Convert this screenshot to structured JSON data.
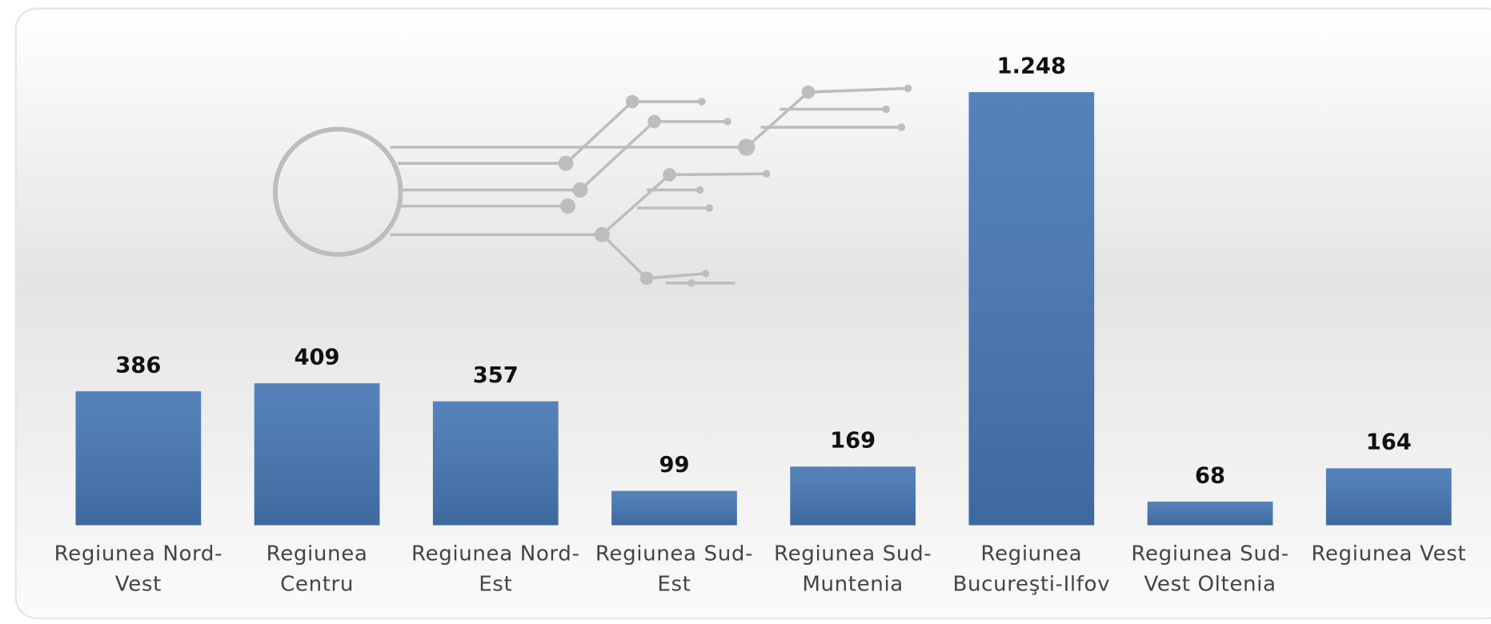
{
  "chart_data": {
    "type": "bar",
    "categories": [
      "Regiunea Nord-Vest",
      "Regiunea Centru",
      "Regiunea Nord-Est",
      "Regiunea Sud-Est",
      "Regiunea Sud-Muntenia",
      "Regiunea Bucureşti-Ilfov",
      "Regiunea Sud-Vest Oltenia",
      "Regiunea Vest"
    ],
    "values": [
      386,
      409,
      357,
      99,
      169,
      1248,
      68,
      164
    ],
    "value_labels": [
      "386",
      "409",
      "357",
      "99",
      "169",
      "1.248",
      "68",
      "164"
    ],
    "color": "#4677b4"
  }
}
